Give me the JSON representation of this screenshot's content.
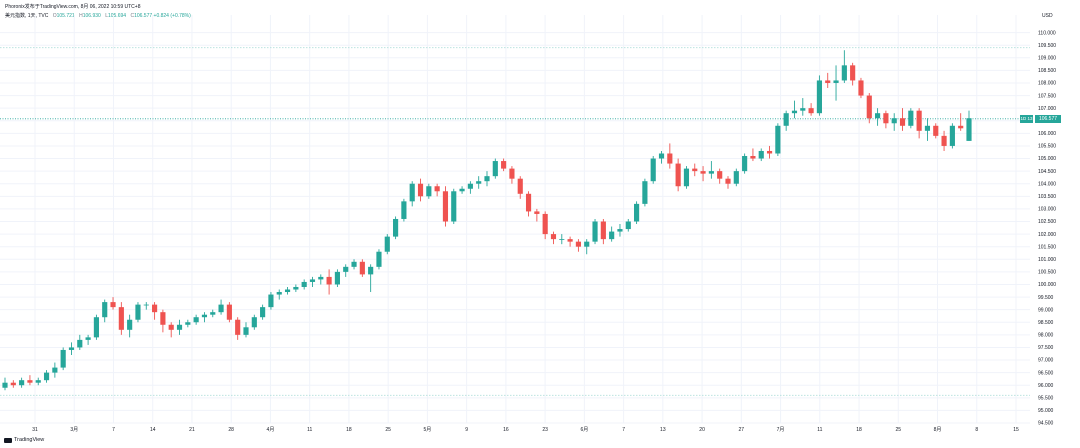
{
  "header": {
    "published": "Phoronix发布于TradingView.com, 8月 06, 2022 10:59 UTC+8",
    "symbol": "美元指数, 1天, TVC",
    "ohlc": [
      {
        "label": "O",
        "value": "105.721"
      },
      {
        "label": "H",
        "value": "106.930"
      },
      {
        "label": "L",
        "value": "105.694"
      },
      {
        "label": "C",
        "value": "106.577"
      }
    ],
    "change": "+0.824 (+0.78%)"
  },
  "currency": "USD",
  "last_price": "106.577",
  "countdown": "1D 13",
  "footer": {
    "logo_text": "TradingView"
  },
  "colors": {
    "up": "#26a69a",
    "down": "#ef5350",
    "last_price_line": "#26a69a"
  },
  "chart_data": {
    "type": "candlestick",
    "y_range": [
      94.5,
      110.5
    ],
    "y_ticks": [
      "110.000",
      "109.500",
      "109.000",
      "108.500",
      "108.000",
      "107.500",
      "107.000",
      "106.500",
      "106.000",
      "105.500",
      "105.000",
      "104.500",
      "104.000",
      "103.500",
      "103.000",
      "102.500",
      "102.000",
      "101.500",
      "101.000",
      "100.500",
      "100.000",
      "99.500",
      "99.000",
      "98.500",
      "98.000",
      "97.500",
      "97.000",
      "96.500",
      "96.000",
      "95.500",
      "95.000",
      "94.500"
    ],
    "x_ticks": [
      "31",
      "3月",
      "7",
      "14",
      "21",
      "28",
      "4月",
      "11",
      "18",
      "25",
      "5月",
      "9",
      "16",
      "23",
      "6月",
      "7",
      "13",
      "20",
      "27",
      "7月",
      "11",
      "18",
      "25",
      "8月",
      "8",
      "15"
    ],
    "dotted_levels": [
      109.4,
      95.6
    ],
    "candles": [
      [
        95.9,
        96.3,
        95.8,
        96.1
      ],
      [
        96.1,
        96.2,
        95.9,
        96.0
      ],
      [
        96.0,
        96.3,
        95.9,
        96.2
      ],
      [
        96.2,
        96.4,
        96.0,
        96.1
      ],
      [
        96.1,
        96.3,
        96.0,
        96.2
      ],
      [
        96.2,
        96.6,
        96.1,
        96.5
      ],
      [
        96.5,
        96.9,
        96.3,
        96.7
      ],
      [
        96.7,
        97.5,
        96.6,
        97.4
      ],
      [
        97.4,
        97.7,
        97.2,
        97.5
      ],
      [
        97.5,
        98.0,
        97.4,
        97.8
      ],
      [
        97.8,
        98.0,
        97.6,
        97.9
      ],
      [
        97.9,
        98.8,
        97.8,
        98.7
      ],
      [
        98.7,
        99.4,
        98.5,
        99.3
      ],
      [
        99.3,
        99.5,
        99.0,
        99.1
      ],
      [
        99.1,
        99.3,
        98.0,
        98.2
      ],
      [
        98.2,
        98.8,
        97.9,
        98.6
      ],
      [
        98.6,
        99.3,
        98.5,
        99.2
      ],
      [
        99.2,
        99.3,
        99.0,
        99.2
      ],
      [
        99.2,
        99.3,
        98.6,
        98.9
      ],
      [
        98.9,
        99.0,
        98.1,
        98.4
      ],
      [
        98.4,
        98.5,
        97.9,
        98.2
      ],
      [
        98.2,
        98.6,
        98.0,
        98.4
      ],
      [
        98.4,
        98.6,
        98.3,
        98.5
      ],
      [
        98.5,
        98.8,
        98.4,
        98.7
      ],
      [
        98.7,
        98.9,
        98.5,
        98.8
      ],
      [
        98.8,
        99.0,
        98.7,
        98.9
      ],
      [
        98.9,
        99.4,
        98.8,
        99.2
      ],
      [
        99.2,
        99.3,
        98.5,
        98.6
      ],
      [
        98.6,
        98.7,
        97.8,
        98.0
      ],
      [
        98.0,
        98.5,
        97.9,
        98.3
      ],
      [
        98.3,
        98.8,
        98.2,
        98.7
      ],
      [
        98.7,
        99.2,
        98.6,
        99.1
      ],
      [
        99.1,
        99.7,
        99.0,
        99.6
      ],
      [
        99.6,
        99.8,
        99.4,
        99.7
      ],
      [
        99.7,
        99.9,
        99.6,
        99.8
      ],
      [
        99.8,
        100.0,
        99.7,
        99.9
      ],
      [
        99.9,
        100.2,
        99.8,
        100.1
      ],
      [
        100.1,
        100.3,
        99.9,
        100.2
      ],
      [
        100.2,
        100.4,
        100.0,
        100.3
      ],
      [
        100.3,
        100.6,
        99.6,
        100.0
      ],
      [
        100.0,
        100.6,
        99.9,
        100.5
      ],
      [
        100.5,
        100.8,
        100.3,
        100.7
      ],
      [
        100.7,
        101.0,
        100.6,
        100.9
      ],
      [
        100.9,
        101.0,
        100.3,
        100.4
      ],
      [
        100.4,
        100.8,
        99.7,
        100.7
      ],
      [
        100.7,
        101.4,
        100.6,
        101.3
      ],
      [
        101.3,
        102.0,
        101.2,
        101.9
      ],
      [
        101.9,
        102.7,
        101.8,
        102.6
      ],
      [
        102.6,
        103.4,
        102.5,
        103.3
      ],
      [
        103.3,
        104.1,
        103.1,
        104.0
      ],
      [
        104.0,
        104.2,
        103.3,
        103.5
      ],
      [
        103.5,
        104.0,
        103.4,
        103.9
      ],
      [
        103.9,
        104.0,
        103.5,
        103.7
      ],
      [
        103.7,
        103.9,
        102.3,
        102.5
      ],
      [
        102.5,
        103.8,
        102.4,
        103.7
      ],
      [
        103.7,
        103.9,
        103.6,
        103.8
      ],
      [
        103.8,
        104.1,
        103.6,
        104.0
      ],
      [
        104.0,
        104.3,
        103.8,
        104.1
      ],
      [
        104.1,
        104.5,
        103.9,
        104.3
      ],
      [
        104.3,
        105.0,
        104.2,
        104.9
      ],
      [
        104.9,
        105.0,
        104.5,
        104.6
      ],
      [
        104.6,
        104.7,
        104.0,
        104.2
      ],
      [
        104.2,
        104.3,
        103.4,
        103.6
      ],
      [
        103.6,
        103.7,
        102.7,
        102.9
      ],
      [
        102.9,
        103.0,
        102.5,
        102.8
      ],
      [
        102.8,
        102.9,
        101.8,
        102.0
      ],
      [
        102.0,
        102.1,
        101.6,
        101.8
      ],
      [
        101.8,
        102.0,
        101.6,
        101.8
      ],
      [
        101.8,
        101.9,
        101.5,
        101.7
      ],
      [
        101.7,
        101.8,
        101.3,
        101.5
      ],
      [
        101.5,
        101.8,
        101.2,
        101.7
      ],
      [
        101.7,
        102.6,
        101.6,
        102.5
      ],
      [
        102.5,
        102.6,
        101.6,
        101.8
      ],
      [
        101.8,
        102.3,
        101.7,
        102.1
      ],
      [
        102.1,
        102.4,
        101.9,
        102.2
      ],
      [
        102.2,
        102.6,
        102.1,
        102.5
      ],
      [
        102.5,
        103.3,
        102.4,
        103.2
      ],
      [
        103.2,
        104.2,
        103.1,
        104.1
      ],
      [
        104.1,
        105.1,
        104.0,
        105.0
      ],
      [
        105.0,
        105.3,
        104.8,
        105.2
      ],
      [
        105.2,
        105.6,
        104.6,
        104.8
      ],
      [
        104.8,
        105.0,
        103.7,
        103.9
      ],
      [
        103.9,
        104.7,
        103.8,
        104.6
      ],
      [
        104.6,
        104.8,
        104.3,
        104.5
      ],
      [
        104.5,
        104.7,
        104.1,
        104.4
      ],
      [
        104.4,
        104.9,
        104.2,
        104.5
      ],
      [
        104.5,
        104.6,
        104.0,
        104.2
      ],
      [
        104.2,
        104.3,
        103.8,
        104.0
      ],
      [
        104.0,
        104.6,
        103.9,
        104.5
      ],
      [
        104.5,
        105.2,
        104.4,
        105.1
      ],
      [
        105.1,
        105.4,
        104.9,
        105.0
      ],
      [
        105.0,
        105.4,
        104.9,
        105.3
      ],
      [
        105.3,
        105.5,
        105.0,
        105.2
      ],
      [
        105.2,
        106.4,
        105.1,
        106.3
      ],
      [
        106.3,
        106.9,
        106.1,
        106.8
      ],
      [
        106.8,
        107.3,
        106.6,
        106.9
      ],
      [
        106.9,
        107.4,
        106.7,
        107.0
      ],
      [
        107.0,
        107.2,
        106.7,
        106.8
      ],
      [
        106.8,
        108.3,
        106.7,
        108.1
      ],
      [
        108.1,
        108.4,
        107.8,
        108.0
      ],
      [
        108.0,
        108.7,
        107.3,
        108.1
      ],
      [
        108.1,
        109.3,
        108.0,
        108.7
      ],
      [
        108.7,
        108.8,
        107.9,
        108.1
      ],
      [
        108.1,
        108.2,
        107.4,
        107.5
      ],
      [
        107.5,
        107.6,
        106.4,
        106.6
      ],
      [
        106.6,
        107.0,
        106.3,
        106.8
      ],
      [
        106.8,
        106.9,
        106.2,
        106.4
      ],
      [
        106.4,
        106.8,
        106.1,
        106.6
      ],
      [
        106.6,
        107.0,
        106.1,
        106.3
      ],
      [
        106.3,
        107.0,
        106.2,
        106.9
      ],
      [
        106.9,
        107.0,
        105.8,
        106.1
      ],
      [
        106.1,
        106.6,
        105.7,
        106.3
      ],
      [
        106.3,
        106.4,
        105.8,
        105.9
      ],
      [
        105.9,
        106.1,
        105.3,
        105.5
      ],
      [
        105.5,
        106.4,
        105.4,
        106.3
      ],
      [
        106.3,
        106.8,
        106.1,
        106.2
      ],
      [
        105.7,
        106.9,
        105.7,
        106.6
      ]
    ]
  }
}
